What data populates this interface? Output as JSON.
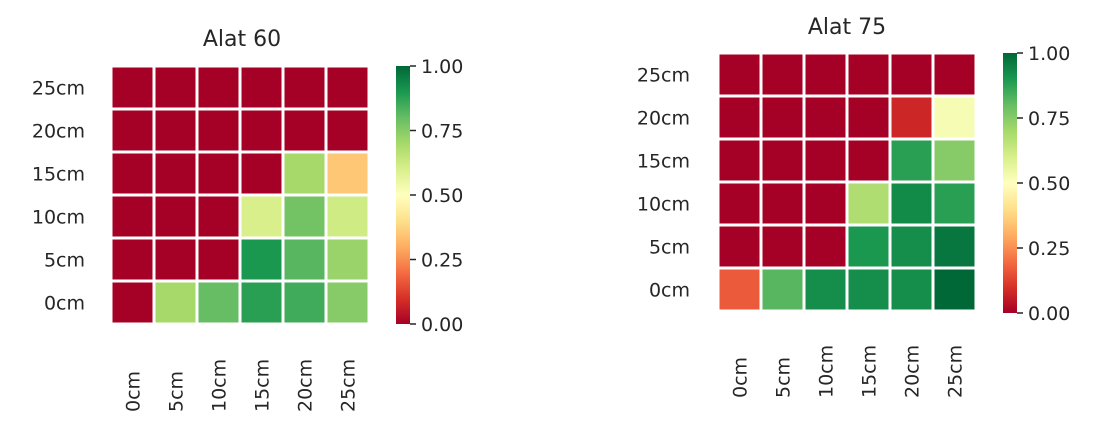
{
  "chart_data": [
    {
      "type": "heatmap",
      "title": "Alat 60",
      "xlabel": "",
      "ylabel": "",
      "x_tick_labels": [
        "0cm",
        "5cm",
        "10cm",
        "15cm",
        "20cm",
        "25cm"
      ],
      "y_tick_labels": [
        "25cm",
        "20cm",
        "15cm",
        "10cm",
        "5cm",
        "0cm"
      ],
      "values": [
        [
          0,
          0,
          0,
          0,
          0,
          0
        ],
        [
          0,
          0,
          0,
          0,
          0,
          0
        ],
        [
          0,
          0,
          0,
          0,
          0.7,
          0.35
        ],
        [
          0,
          0,
          0,
          0.6,
          0.78,
          0.62
        ],
        [
          0,
          0,
          0,
          0.9,
          0.82,
          0.72
        ],
        [
          0,
          0.7,
          0.8,
          0.88,
          0.85,
          0.75
        ]
      ],
      "colorbar": {
        "range": [
          0,
          1
        ],
        "ticks": [
          "0.00",
          "0.25",
          "0.50",
          "0.75",
          "1.00"
        ],
        "colormap": "RdYlGn"
      }
    },
    {
      "type": "heatmap",
      "title": "Alat 75",
      "xlabel": "",
      "ylabel": "",
      "x_tick_labels": [
        "0cm",
        "5cm",
        "10cm",
        "15cm",
        "20cm",
        "25cm"
      ],
      "y_tick_labels": [
        "25cm",
        "20cm",
        "15cm",
        "10cm",
        "5cm",
        "0cm"
      ],
      "values": [
        [
          0,
          0,
          0,
          0,
          0,
          0
        ],
        [
          0,
          0,
          0,
          0,
          0.08,
          0.52
        ],
        [
          0,
          0,
          0,
          0,
          0.88,
          0.75
        ],
        [
          0,
          0,
          0,
          0.68,
          0.93,
          0.88
        ],
        [
          0,
          0,
          0,
          0.9,
          0.92,
          0.97
        ],
        [
          0.17,
          0.82,
          0.92,
          0.92,
          0.92,
          1.0
        ]
      ],
      "colorbar": {
        "range": [
          0,
          1
        ],
        "ticks": [
          "0.00",
          "0.25",
          "0.50",
          "0.75",
          "1.00"
        ],
        "colormap": "RdYlGn"
      }
    }
  ]
}
